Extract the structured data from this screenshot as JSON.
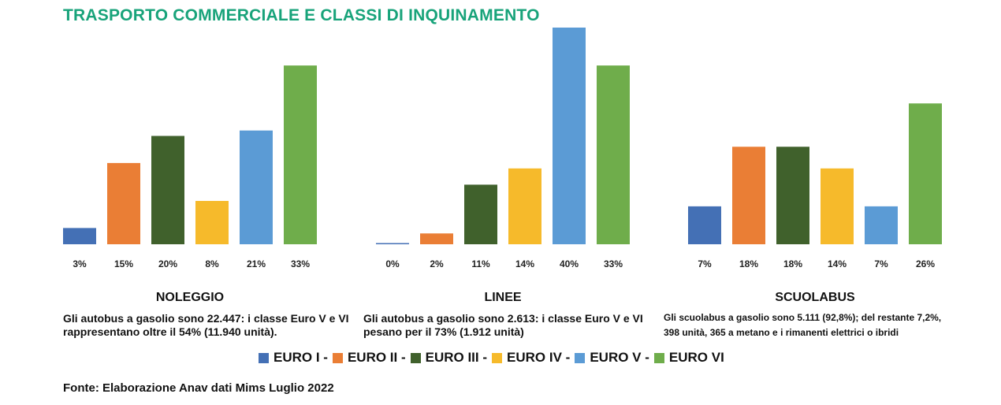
{
  "title": "TRASPORTO COMMERCIALE E CLASSI DI INQUINAMENTO",
  "colors": {
    "title": "#18a37a",
    "series": [
      "#4470b5",
      "#ea7e35",
      "#40612c",
      "#f6ba2b",
      "#5b9bd5",
      "#6fad4b"
    ]
  },
  "legend": [
    "EURO I -",
    "EURO II -",
    "EURO III -",
    "EURO IV -",
    "EURO V -",
    "EURO VI"
  ],
  "chart_data": [
    {
      "type": "bar",
      "title": "NOLEGGIO",
      "categories": [
        "EURO I",
        "EURO II",
        "EURO III",
        "EURO IV",
        "EURO V",
        "EURO VI"
      ],
      "values": [
        3,
        15,
        20,
        8,
        21,
        33
      ],
      "labels": [
        "3%",
        "15%",
        "20%",
        "8%",
        "21%",
        "33%"
      ],
      "unit": "%",
      "ylim": [
        0,
        40
      ],
      "note": "Gli autobus a gasolio sono 22.447: i classe Euro V e VI rappresentano oltre il 54% (11.940 unità)."
    },
    {
      "type": "bar",
      "title": "LINEE",
      "categories": [
        "EURO I",
        "EURO II",
        "EURO III",
        "EURO IV",
        "EURO V",
        "EURO VI"
      ],
      "values": [
        0,
        2,
        11,
        14,
        40,
        33
      ],
      "labels": [
        "0%",
        "2%",
        "11%",
        "14%",
        "40%",
        "33%"
      ],
      "unit": "%",
      "ylim": [
        0,
        40
      ],
      "note": "Gli autobus a gasolio sono 2.613: i classe Euro V e VI pesano per il 73% (1.912 unità)"
    },
    {
      "type": "bar",
      "title": "SCUOLABUS",
      "categories": [
        "EURO I",
        "EURO II",
        "EURO III",
        "EURO IV",
        "EURO V",
        "EURO VI"
      ],
      "values": [
        7,
        18,
        18,
        14,
        7,
        26
      ],
      "labels": [
        "7%",
        "18%",
        "18%",
        "14%",
        "7%",
        "26%"
      ],
      "unit": "%",
      "ylim": [
        0,
        40
      ],
      "note": "Gli scuolabus a gasolio sono 5.111 (92,8%); del restante 7,2%, 398 unità, 365 a metano e i rimanenti elettrici o ibridi"
    }
  ],
  "source": "Fonte: Elaborazione Anav dati Mims Luglio 2022"
}
